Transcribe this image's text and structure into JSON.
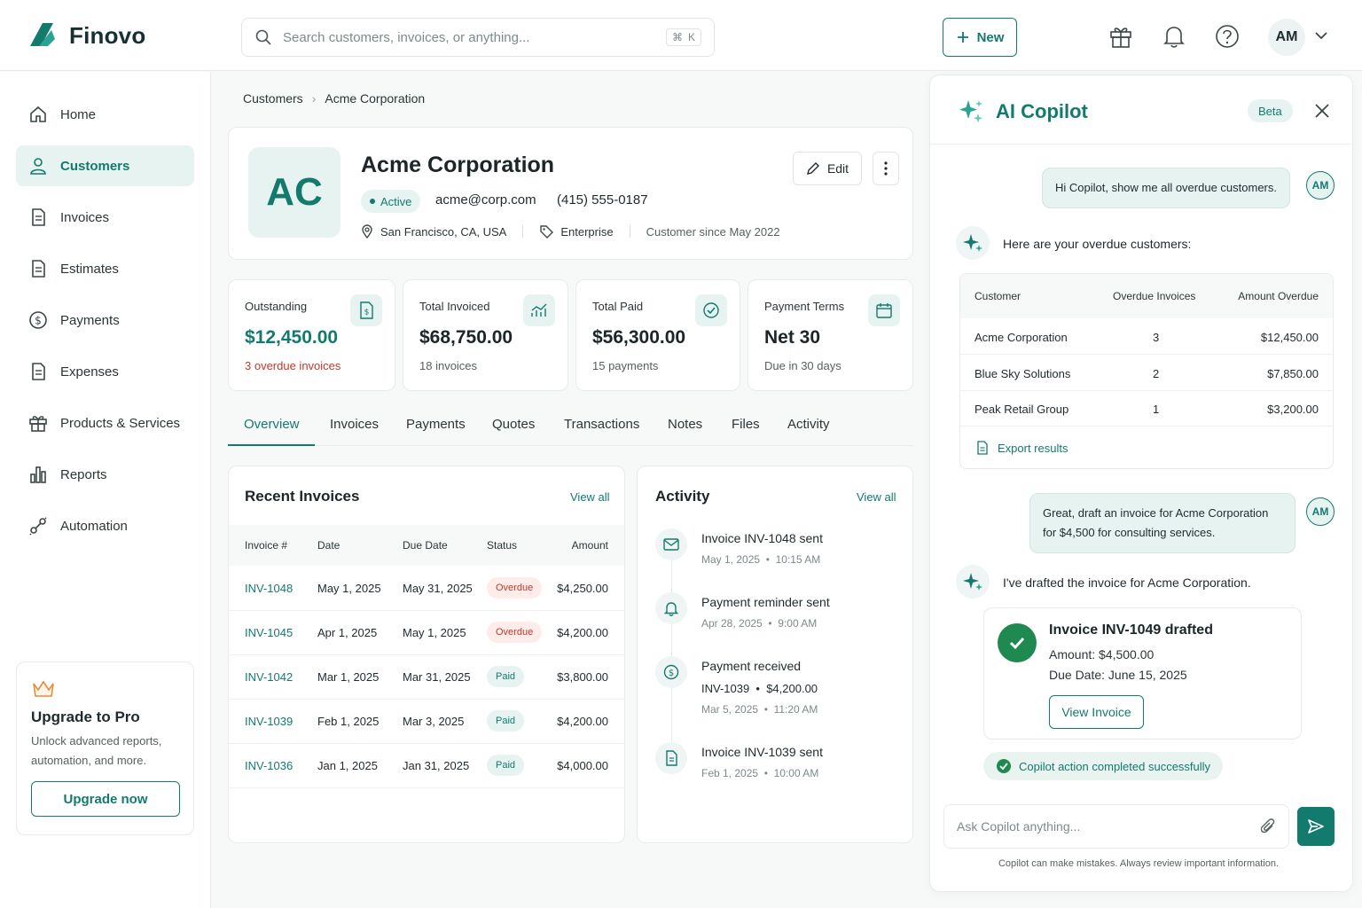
{
  "app": {
    "name": "Finovo"
  },
  "header": {
    "search_placeholder": "Search customers, invoices, or anything...",
    "shortcut_mod": "⌘",
    "shortcut_key": "K",
    "new_label": "New",
    "user_initials": "AM"
  },
  "sidebar": {
    "items": [
      {
        "label": "Home",
        "icon": "home-icon"
      },
      {
        "label": "Customers",
        "icon": "user-icon"
      },
      {
        "label": "Invoices",
        "icon": "document-icon"
      },
      {
        "label": "Estimates",
        "icon": "document-icon"
      },
      {
        "label": "Payments",
        "icon": "dollar-circle-icon"
      },
      {
        "label": "Expenses",
        "icon": "document-icon"
      },
      {
        "label": "Products & Services",
        "icon": "gift-icon"
      },
      {
        "label": "Reports",
        "icon": "chart-bar-icon"
      },
      {
        "label": "Automation",
        "icon": "automation-icon"
      }
    ],
    "upgrade": {
      "title": "Upgrade to Pro",
      "text": "Unlock advanced reports, automation, and more.",
      "button": "Upgrade now"
    }
  },
  "breadcrumb": {
    "parent": "Customers",
    "current": "Acme Corporation"
  },
  "customer": {
    "initials": "AC",
    "name": "Acme Corporation",
    "status": "Active",
    "email": "acme@corp.com",
    "phone": "(415) 555-0187",
    "location": "San Francisco, CA, USA",
    "tier": "Enterprise",
    "since": "Customer since May 2022",
    "edit_label": "Edit"
  },
  "stats": [
    {
      "label": "Outstanding",
      "value": "$12,450.00",
      "sub": "3 overdue invoices",
      "icon": "dollar-doc-icon"
    },
    {
      "label": "Total Invoiced",
      "value": "$68,750.00",
      "sub": "18 invoices",
      "icon": "trend-chart-icon"
    },
    {
      "label": "Total Paid",
      "value": "$56,300.00",
      "sub": "15 payments",
      "icon": "check-circle-icon"
    },
    {
      "label": "Payment Terms",
      "value": "Net 30",
      "sub": "Due in 30 days",
      "icon": "calendar-icon"
    }
  ],
  "tabs": [
    "Overview",
    "Invoices",
    "Payments",
    "Quotes",
    "Transactions",
    "Notes",
    "Files",
    "Activity"
  ],
  "recent_invoices": {
    "title": "Recent Invoices",
    "view_all": "View all",
    "columns": [
      "Invoice #",
      "Date",
      "Due Date",
      "Status",
      "Amount"
    ],
    "rows": [
      {
        "id": "INV-1048",
        "date": "May 1, 2025",
        "due": "May 31, 2025",
        "status": "Overdue",
        "amount": "$4,250.00"
      },
      {
        "id": "INV-1045",
        "date": "Apr 1, 2025",
        "due": "May 1, 2025",
        "status": "Overdue",
        "amount": "$4,200.00"
      },
      {
        "id": "INV-1042",
        "date": "Mar 1, 2025",
        "due": "Mar 31, 2025",
        "status": "Paid",
        "amount": "$3,800.00"
      },
      {
        "id": "INV-1039",
        "date": "Feb 1, 2025",
        "due": "Mar 3, 2025",
        "status": "Paid",
        "amount": "$4,200.00"
      },
      {
        "id": "INV-1036",
        "date": "Jan 1, 2025",
        "due": "Jan 31, 2025",
        "status": "Paid",
        "amount": "$4,000.00"
      }
    ]
  },
  "activity": {
    "title": "Activity",
    "view_all": "View all",
    "items": [
      {
        "title": "Invoice INV-1048 sent",
        "detail": "",
        "date": "May 1, 2025",
        "time": "10:15 AM",
        "icon": "mail-icon"
      },
      {
        "title": "Payment reminder sent",
        "detail": "",
        "date": "Apr 28, 2025",
        "time": "9:00 AM",
        "icon": "bell-icon"
      },
      {
        "title": "Payment received",
        "detail": "INV-1039",
        "amount": "$4,200.00",
        "date": "Mar 5, 2025",
        "time": "11:20 AM",
        "icon": "dollar-circle-icon"
      },
      {
        "title": "Invoice INV-1039 sent",
        "detail": "",
        "date": "Feb 1, 2025",
        "time": "10:00 AM",
        "icon": "document-icon"
      }
    ]
  },
  "copilot": {
    "title": "AI Copilot",
    "badge": "Beta",
    "user_initials": "AM",
    "msg1": "Hi Copilot, show me all overdue customers.",
    "reply1": "Here are your overdue customers:",
    "table": {
      "columns": [
        "Customer",
        "Overdue Invoices",
        "Amount Overdue"
      ],
      "rows": [
        {
          "customer": "Acme Corporation",
          "count": "3",
          "amount": "$12,450.00"
        },
        {
          "customer": "Blue Sky Solutions",
          "count": "2",
          "amount": "$7,850.00"
        },
        {
          "customer": "Peak Retail Group",
          "count": "1",
          "amount": "$3,200.00"
        }
      ],
      "export": "Export results"
    },
    "msg2": "Great, draft an invoice for Acme Corporation for $4,500 for consulting services.",
    "reply2": "I've drafted the invoice for Acme Corporation.",
    "draft": {
      "title": "Invoice INV-1049 drafted",
      "amount": "Amount: $4,500.00",
      "due": "Due Date: June 15, 2025",
      "button": "View Invoice"
    },
    "success": "Copilot action completed successfully",
    "input_placeholder": "Ask Copilot anything...",
    "disclaimer": "Copilot can make mistakes. Always review important information."
  },
  "colors": {
    "accent": "#137a6e",
    "overdue": "#c0392b",
    "success": "#1e8a4f"
  }
}
